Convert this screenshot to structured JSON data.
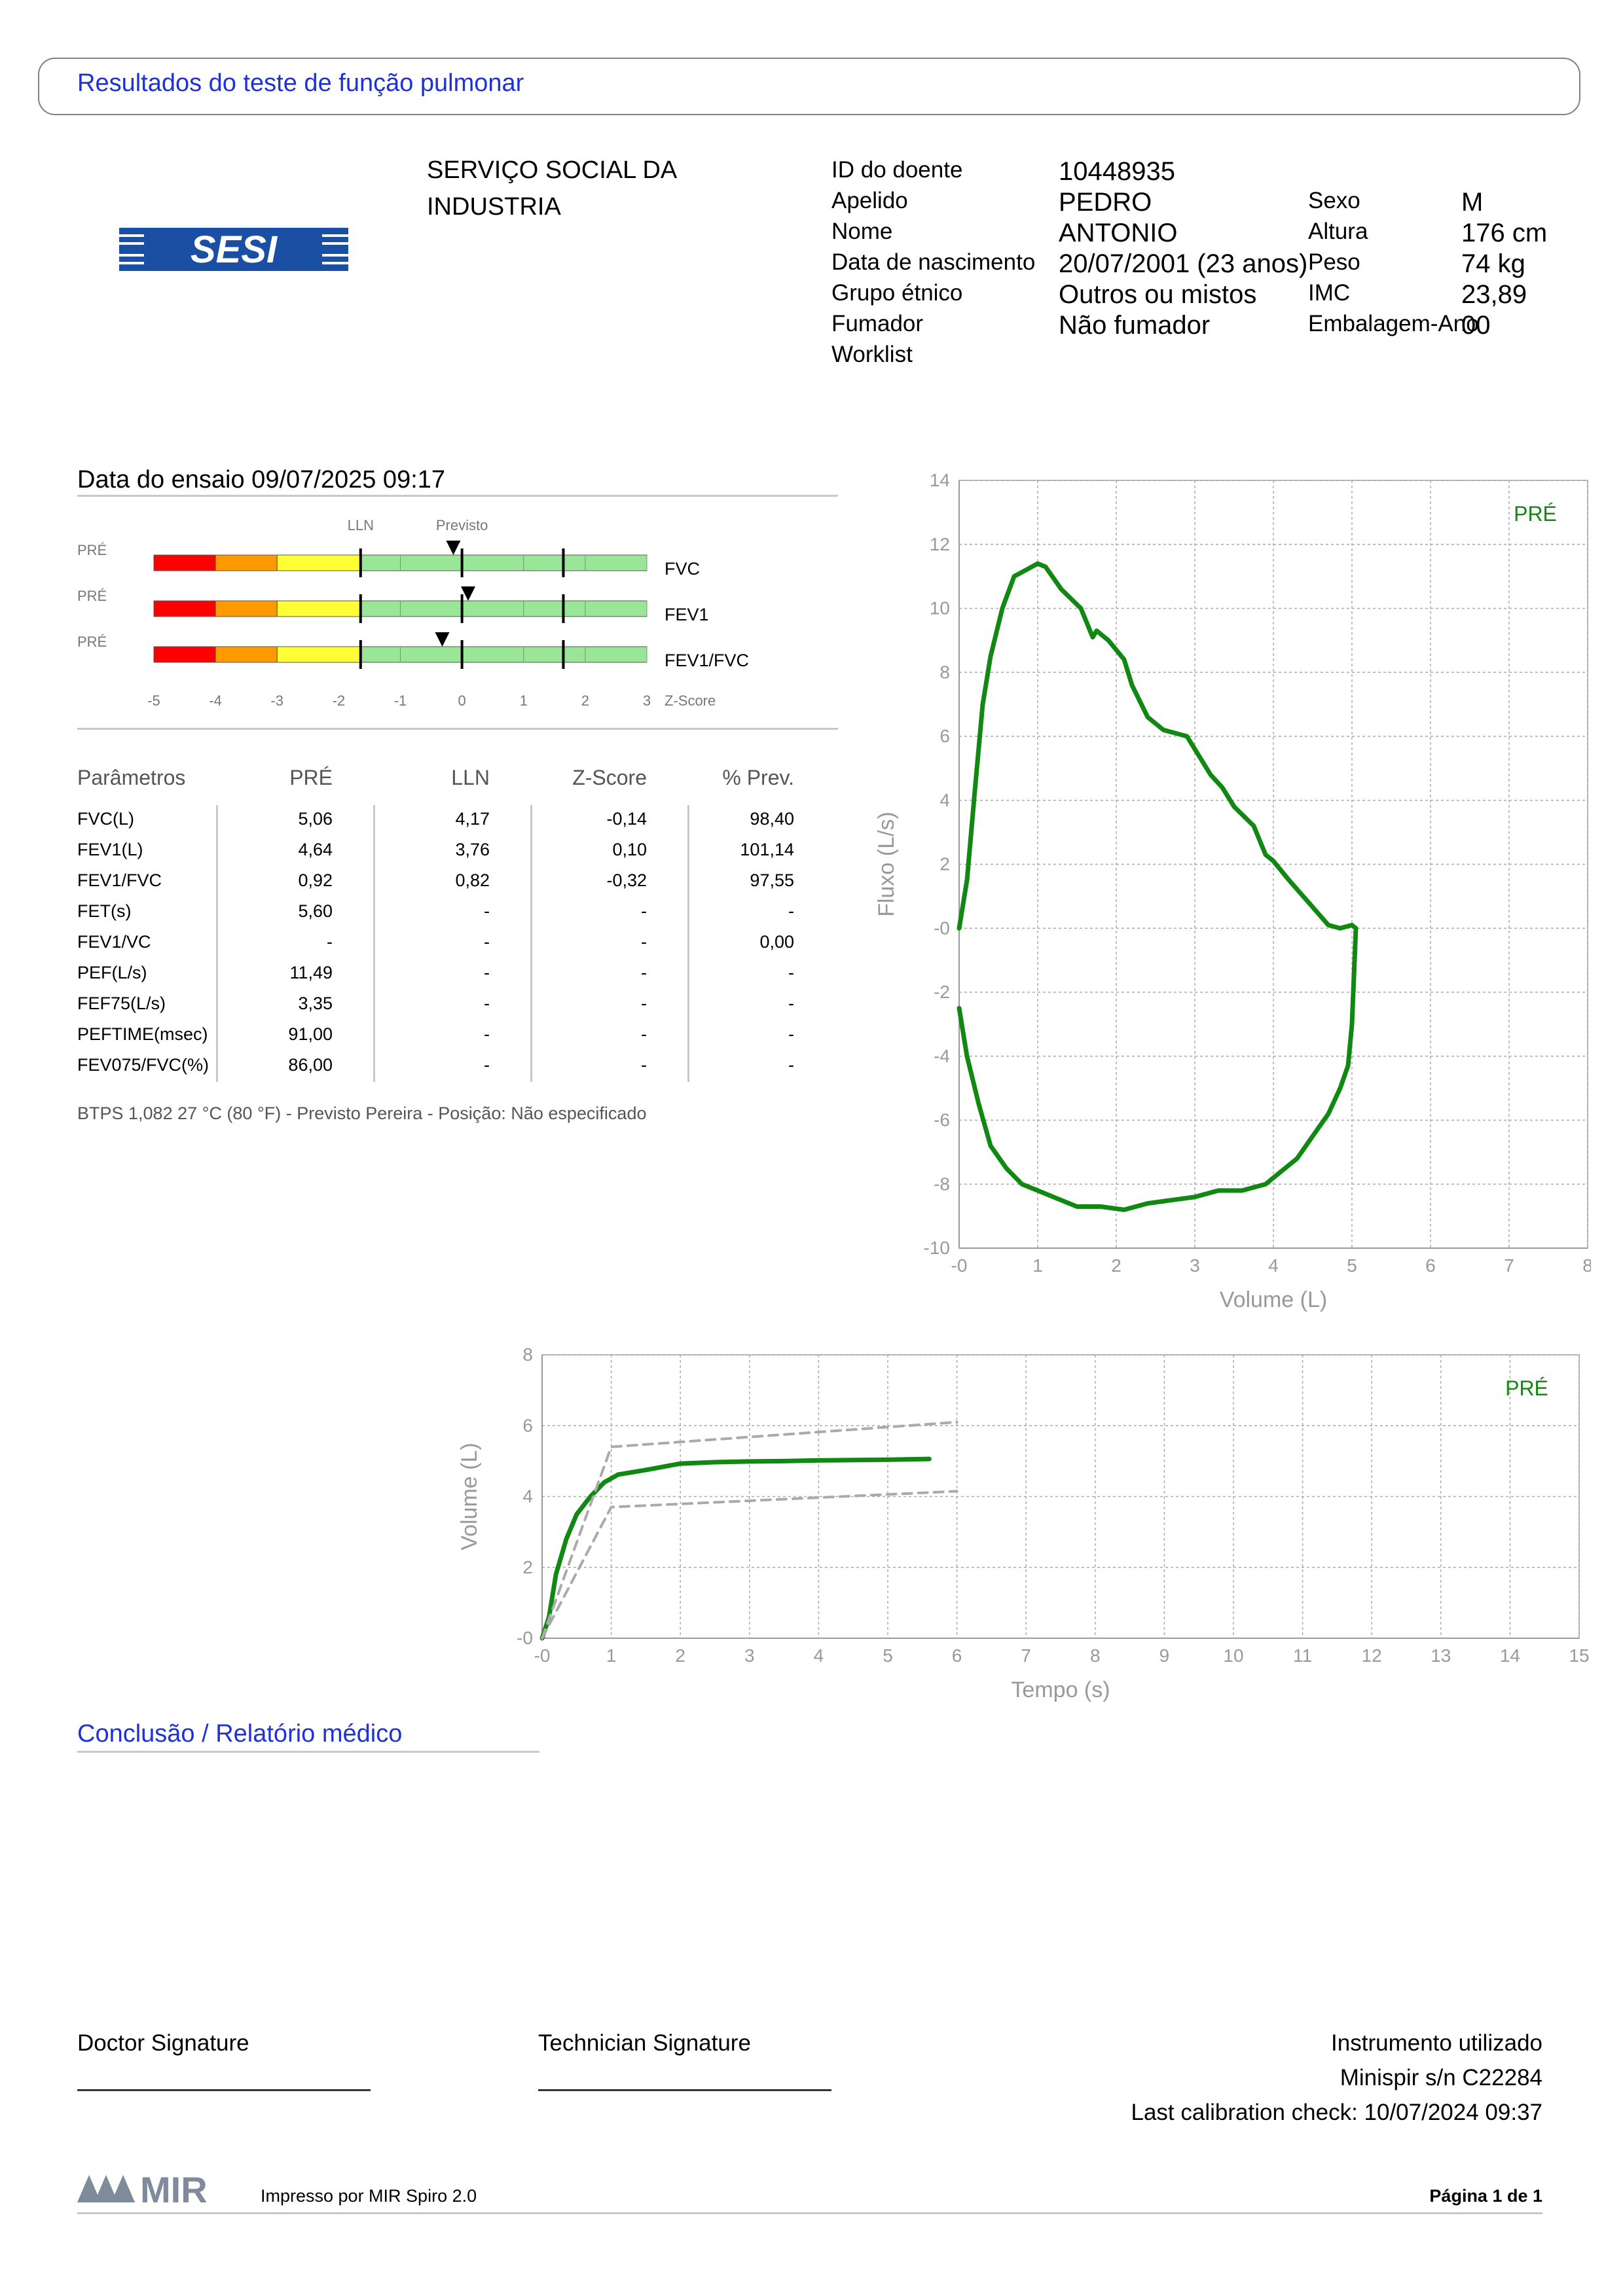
{
  "header": {
    "title": "Resultados do teste de função pulmonar"
  },
  "organization": {
    "line1": "SERVIÇO SOCIAL DA",
    "line2": "INDUSTRIA",
    "logo_text": "SESI",
    "logo_color": "#1a4fa3"
  },
  "patient": {
    "labels": {
      "id": "ID do doente",
      "surname": "Apelido",
      "name": "Nome",
      "dob": "Data de nascimento",
      "ethnic": "Grupo étnico",
      "smoker": "Fumador",
      "worklist": "Worklist",
      "sex": "Sexo",
      "height": "Altura",
      "weight": "Peso",
      "bmi": "IMC",
      "packyears": "Embalagem-Ano"
    },
    "values": {
      "id": "10448935",
      "surname": "PEDRO",
      "name": "ANTONIO",
      "dob": "20/07/2001 (23 anos)",
      "ethnic": "Outros ou mistos",
      "smoker": "Não fumador",
      "sex": "M",
      "height": "176 cm",
      "weight": "74 kg",
      "bmi": "23,89",
      "packyears": "00"
    }
  },
  "test": {
    "date_label": "Data do ensaio 09/07/2025 09:17"
  },
  "zscore_bars": {
    "lln_label": "LLN",
    "pred_label": "Previsto",
    "axis_label": "Z-Score",
    "ticks": [
      "-5",
      "-4",
      "-3",
      "-2",
      "-1",
      "0",
      "1",
      "2",
      "3"
    ],
    "rows": [
      {
        "tag": "PRÉ",
        "name": "FVC",
        "z": -0.14
      },
      {
        "tag": "PRÉ",
        "name": "FEV1",
        "z": 0.1
      },
      {
        "tag": "PRÉ",
        "name": "FEV1/FVC",
        "z": -0.32
      }
    ],
    "lln_z": -1.645,
    "uln_z": 1.645,
    "colors": {
      "red": "#ff0000",
      "orange": "#ff9900",
      "yellow": "#ffff33",
      "green": "#99e699"
    }
  },
  "params": {
    "headers": [
      "Parâmetros",
      "PRÉ",
      "LLN",
      "Z-Score",
      "% Prev."
    ],
    "rows": [
      [
        "FVC(L)",
        "5,06",
        "4,17",
        "-0,14",
        "98,40"
      ],
      [
        "FEV1(L)",
        "4,64",
        "3,76",
        "0,10",
        "101,14"
      ],
      [
        "FEV1/FVC",
        "0,92",
        "0,82",
        "-0,32",
        "97,55"
      ],
      [
        "FET(s)",
        "5,60",
        "-",
        "-",
        "-"
      ],
      [
        "FEV1/VC",
        "-",
        "-",
        "-",
        "0,00"
      ],
      [
        "PEF(L/s)",
        "11,49",
        "-",
        "-",
        "-"
      ],
      [
        "FEF75(L/s)",
        "3,35",
        "-",
        "-",
        "-"
      ],
      [
        "PEFTIME(msec)",
        "91,00",
        "-",
        "-",
        "-"
      ],
      [
        "FEV075/FVC(%)",
        "86,00",
        "-",
        "-",
        "-"
      ]
    ],
    "note": "BTPS 1,082 27 °C (80 °F) - Previsto Pereira - Posição: Não especificado"
  },
  "chart_data": [
    {
      "type": "line",
      "title": "",
      "xlabel": "Volume (L)",
      "ylabel": "Fluxo (L/s)",
      "xlim": [
        0,
        8
      ],
      "ylim": [
        -10,
        14
      ],
      "xticks": [
        "-0",
        "1",
        "2",
        "3",
        "4",
        "5",
        "6",
        "7",
        "8"
      ],
      "yticks": [
        "14",
        "12",
        "10",
        "8",
        "6",
        "4",
        "2",
        "-0",
        "-2",
        "-4",
        "-6",
        "-8",
        "-10"
      ],
      "grid": true,
      "legend": "PRÉ",
      "series": [
        {
          "name": "PRÉ",
          "color": "#118811",
          "x": [
            0,
            0.1,
            0.2,
            0.3,
            0.4,
            0.55,
            0.7,
            0.85,
            1.0,
            1.1,
            1.3,
            1.55,
            1.7,
            1.75,
            1.9,
            2.1,
            2.2,
            2.4,
            2.6,
            2.9,
            3.1,
            3.2,
            3.35,
            3.5,
            3.75,
            3.9,
            4.0,
            4.2,
            4.45,
            4.7,
            4.85,
            5.0,
            5.05,
            5.0,
            4.95,
            4.85,
            4.7,
            4.5,
            4.3,
            4.1,
            3.9,
            3.6,
            3.3,
            3.0,
            2.7,
            2.4,
            2.1,
            1.8,
            1.5,
            1.3,
            1.0,
            0.8,
            0.6,
            0.4,
            0.25,
            0.1,
            0
          ],
          "y": [
            0,
            1.5,
            4.3,
            7.0,
            8.5,
            10.0,
            11.0,
            11.2,
            11.4,
            11.3,
            10.6,
            10.0,
            9.1,
            9.3,
            9.0,
            8.4,
            7.6,
            6.6,
            6.2,
            6.0,
            5.2,
            4.8,
            4.4,
            3.8,
            3.2,
            2.3,
            2.1,
            1.5,
            0.8,
            0.1,
            0,
            0.1,
            0,
            -3.0,
            -4.3,
            -5.0,
            -5.8,
            -6.5,
            -7.2,
            -7.6,
            -8.0,
            -8.2,
            -8.2,
            -8.4,
            -8.5,
            -8.6,
            -8.8,
            -8.7,
            -8.7,
            -8.5,
            -8.2,
            -8.0,
            -7.5,
            -6.8,
            -5.5,
            -4.0,
            -2.5
          ]
        }
      ]
    },
    {
      "type": "line",
      "title": "",
      "xlabel": "Tempo (s)",
      "ylabel": "Volume (L)",
      "xlim": [
        0,
        15
      ],
      "ylim": [
        0,
        8
      ],
      "xticks": [
        "-0",
        "1",
        "2",
        "3",
        "4",
        "5",
        "6",
        "7",
        "8",
        "9",
        "10",
        "11",
        "12",
        "13",
        "14",
        "15"
      ],
      "yticks": [
        "8",
        "6",
        "4",
        "2",
        "-0"
      ],
      "grid": true,
      "legend": "PRÉ",
      "series": [
        {
          "name": "PRÉ",
          "color": "#118811",
          "x": [
            0,
            0.1,
            0.2,
            0.35,
            0.5,
            0.7,
            0.9,
            1.1,
            1.5,
            2.0,
            2.5,
            3.0,
            3.5,
            4.0,
            4.5,
            5.0,
            5.6
          ],
          "y": [
            0,
            0.6,
            1.8,
            2.8,
            3.5,
            4.0,
            4.4,
            4.62,
            4.75,
            4.93,
            4.97,
            4.99,
            5.0,
            5.02,
            5.03,
            5.04,
            5.06
          ]
        },
        {
          "name": "",
          "color": "#aaaaaa",
          "dashed": true,
          "x": [
            0,
            1.0,
            6.0
          ],
          "y": [
            0,
            5.4,
            6.1
          ]
        },
        {
          "name": "",
          "color": "#aaaaaa",
          "dashed": true,
          "x": [
            0,
            1.0,
            6.0
          ],
          "y": [
            0,
            3.7,
            4.15
          ]
        }
      ]
    }
  ],
  "conclusion": {
    "title": "Conclusão / Relatório médico"
  },
  "signatures": {
    "doctor": "Doctor Signature",
    "technician": "Technician Signature"
  },
  "instrument": {
    "line1": "Instrumento utilizado",
    "line2": "Minispir s/n C22284",
    "line3": "Last calibration check: 10/07/2024 09:37"
  },
  "footer": {
    "logo_text": "MIR",
    "printed_by": "Impresso por MIR Spiro 2.0",
    "page": "Página 1 de 1"
  }
}
